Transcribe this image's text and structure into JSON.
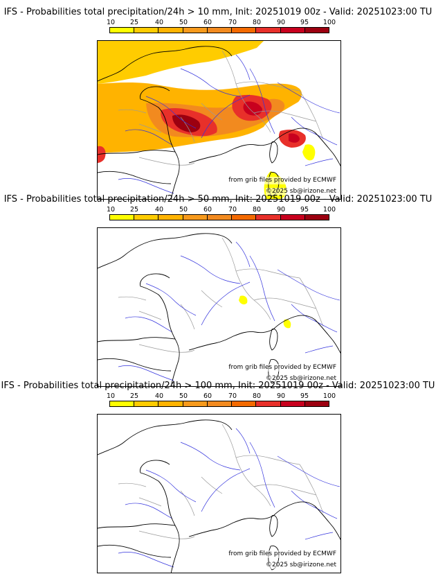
{
  "panels": [
    {
      "title": "IFS - Probabilities total precipitation/24h > 10 mm, Init: 20251019 00z - Valid: 20251023:00 TU",
      "threshold_mm": 10,
      "has_heavy_field": true
    },
    {
      "title": "IFS - Probabilities total precipitation/24h > 50 mm, Init: 20251019 00z - Valid: 20251023:00 TU",
      "threshold_mm": 50,
      "has_heavy_field": false
    },
    {
      "title": "IFS - Probabilities total precipitation/24h > 100 mm, Init: 20251019 00z - Valid: 20251023:00 TU",
      "threshold_mm": 100,
      "has_heavy_field": false
    }
  ],
  "color_scale": {
    "labels": [
      "10",
      "25",
      "40",
      "50",
      "60",
      "70",
      "80",
      "90",
      "95",
      "100"
    ],
    "colors": [
      "#ffff00",
      "#ffcc00",
      "#ffb300",
      "#f79a1c",
      "#f28a1f",
      "#f46a00",
      "#e8302a",
      "#c8001e",
      "#9c0010",
      "#6b0008"
    ]
  },
  "credits": {
    "source": "from grib files provided by ECMWF",
    "copyright": "©2025 sb@irizone.net"
  },
  "colors": {
    "coast": "#000000",
    "rivers": "#3333dd",
    "borders": "#9a9a9a",
    "background": "#ffffff"
  }
}
